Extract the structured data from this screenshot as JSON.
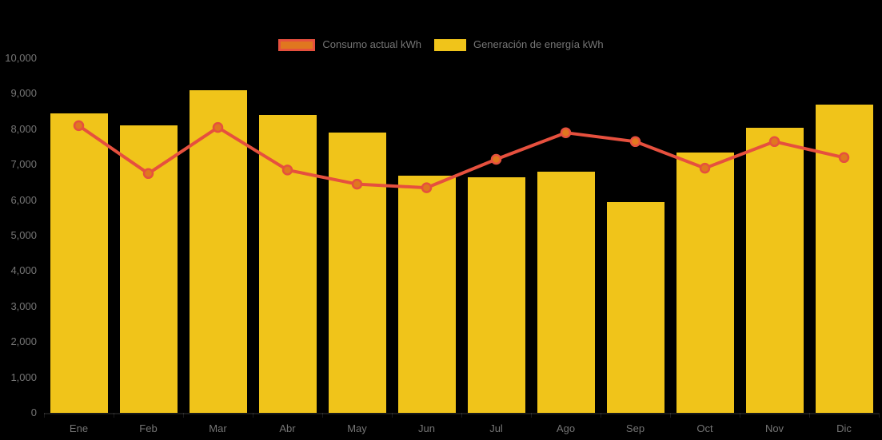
{
  "page": {
    "background": "#000000",
    "text_color": "#757575"
  },
  "legend": {
    "position": "top-center",
    "items": [
      {
        "label": "Consumo actual kWh",
        "fill": "#e0771f",
        "border": "#e6503e"
      },
      {
        "label": "Generación de energía kWh",
        "fill": "#f0c41a",
        "border": "#f0c41a"
      }
    ]
  },
  "chart_data": {
    "type": "bar",
    "title": "",
    "categories": [
      "Ene",
      "Feb",
      "Mar",
      "Abr",
      "May",
      "Jun",
      "Jul",
      "Ago",
      "Sep",
      "Oct",
      "Nov",
      "Dic"
    ],
    "series": [
      {
        "name": "Consumo actual kWh",
        "type": "line",
        "color": "#e6503e",
        "point_fill": "#e0771f",
        "values": [
          8100,
          6750,
          8050,
          6850,
          6450,
          6350,
          7150,
          7900,
          7650,
          6900,
          7650,
          7200
        ]
      },
      {
        "name": "Generación de energía kWh",
        "type": "bar",
        "color": "#f0c41a",
        "values": [
          8450,
          8100,
          9100,
          8400,
          7900,
          6700,
          6650,
          6800,
          5950,
          7350,
          8050,
          8700
        ]
      }
    ],
    "xlabel": "",
    "ylabel": "",
    "ylim": [
      0,
      10000
    ],
    "ytick_step": 1000,
    "ytick_labels": [
      "0",
      "1,000",
      "2,000",
      "3,000",
      "4,000",
      "5,000",
      "6,000",
      "7,000",
      "8,000",
      "9,000",
      "10,000"
    ],
    "grid": false,
    "legend_position": "top",
    "background": "#000000"
  }
}
